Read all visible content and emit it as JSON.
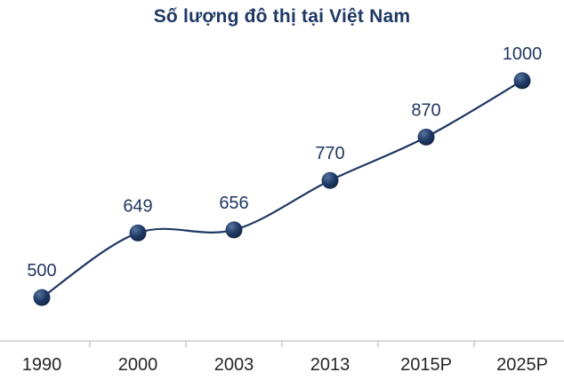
{
  "chart_data": {
    "type": "line",
    "title": "Số lượng đô thị tại Việt Nam",
    "categories": [
      "1990",
      "2000",
      "2003",
      "2013",
      "2015P",
      "2025P"
    ],
    "values": [
      500,
      649,
      656,
      770,
      870,
      1000
    ],
    "data_labels": true,
    "grid": false,
    "legend": false,
    "xlabel": "",
    "ylabel": "",
    "ylim": [
      400,
      1100
    ],
    "marker_style": "circle",
    "colors": {
      "title": "#1F3864",
      "line": "#1F3864",
      "marker": "#1F3864",
      "marker_highlight": "#55749E",
      "marker_shadow": "#122440",
      "data_label": "#203864",
      "axis_label": "#262626",
      "axis_line": "#BFBFBF",
      "background": "#FFFFFF"
    }
  }
}
